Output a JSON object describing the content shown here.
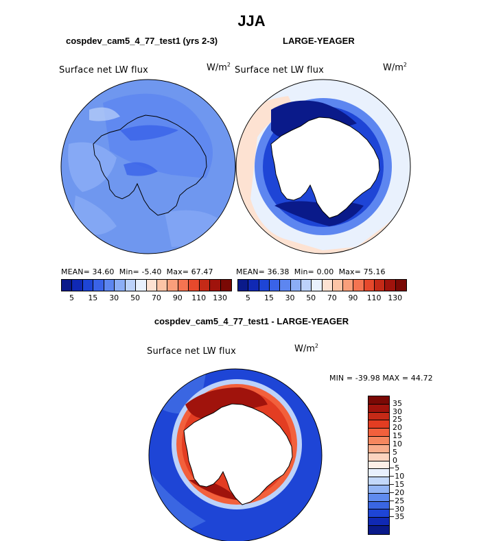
{
  "title": "JJA",
  "panels": [
    {
      "title": "cospdev_cam5_4_77_test1 (yrs 2-3)",
      "variable": "Surface net LW flux",
      "units_base": "W/m",
      "units_exp": "2",
      "stats": {
        "mean_label": "MEAN=",
        "mean": "34.60",
        "min_label": "Min=",
        "min": "-5.40",
        "max_label": "Max=",
        "max": "67.47"
      }
    },
    {
      "title": "LARGE-YEAGER",
      "variable": "Surface net LW flux",
      "units_base": "W/m",
      "units_exp": "2",
      "stats": {
        "mean_label": "MEAN=",
        "mean": "36.38",
        "min_label": "Min=",
        "min": "0.00",
        "max_label": "Max=",
        "max": "75.16"
      }
    }
  ],
  "diff_panel": {
    "title": "cospdev_cam5_4_77_test1 - LARGE-YEAGER",
    "variable": "Surface net LW flux",
    "units_base": "W/m",
    "units_exp": "2",
    "minmax": "MIN = -39.98 MAX =  44.72"
  },
  "colorbar_abs": {
    "colors": [
      "#0a1a8a",
      "#1029b4",
      "#1e45d6",
      "#3a63e8",
      "#5d86f0",
      "#8caef6",
      "#bcd2fa",
      "#e9f1fd",
      "#fde2d2",
      "#fcc4a6",
      "#f99f7b",
      "#f47451",
      "#e6492c",
      "#c52a17",
      "#a0130c",
      "#7a0905"
    ],
    "labels": [
      "5",
      "15",
      "30",
      "50",
      "70",
      "90",
      "110",
      "130"
    ]
  },
  "colorbar_diff": {
    "colors": [
      "#7a0905",
      "#a0130c",
      "#c52a17",
      "#e33d22",
      "#f2603c",
      "#f6875f",
      "#f9ad8c",
      "#fcd3bf",
      "#fdeee6",
      "#e8f0fd",
      "#c3d8fa",
      "#93b5f5",
      "#5f8bee",
      "#3a66e2",
      "#1e45d6",
      "#1029b4",
      "#0a1a8a"
    ],
    "labels": [
      "35",
      "30",
      "25",
      "20",
      "15",
      "10",
      "5",
      "0",
      "−5",
      "−10",
      "−15",
      "−20",
      "−25",
      "−30",
      "−35"
    ]
  }
}
